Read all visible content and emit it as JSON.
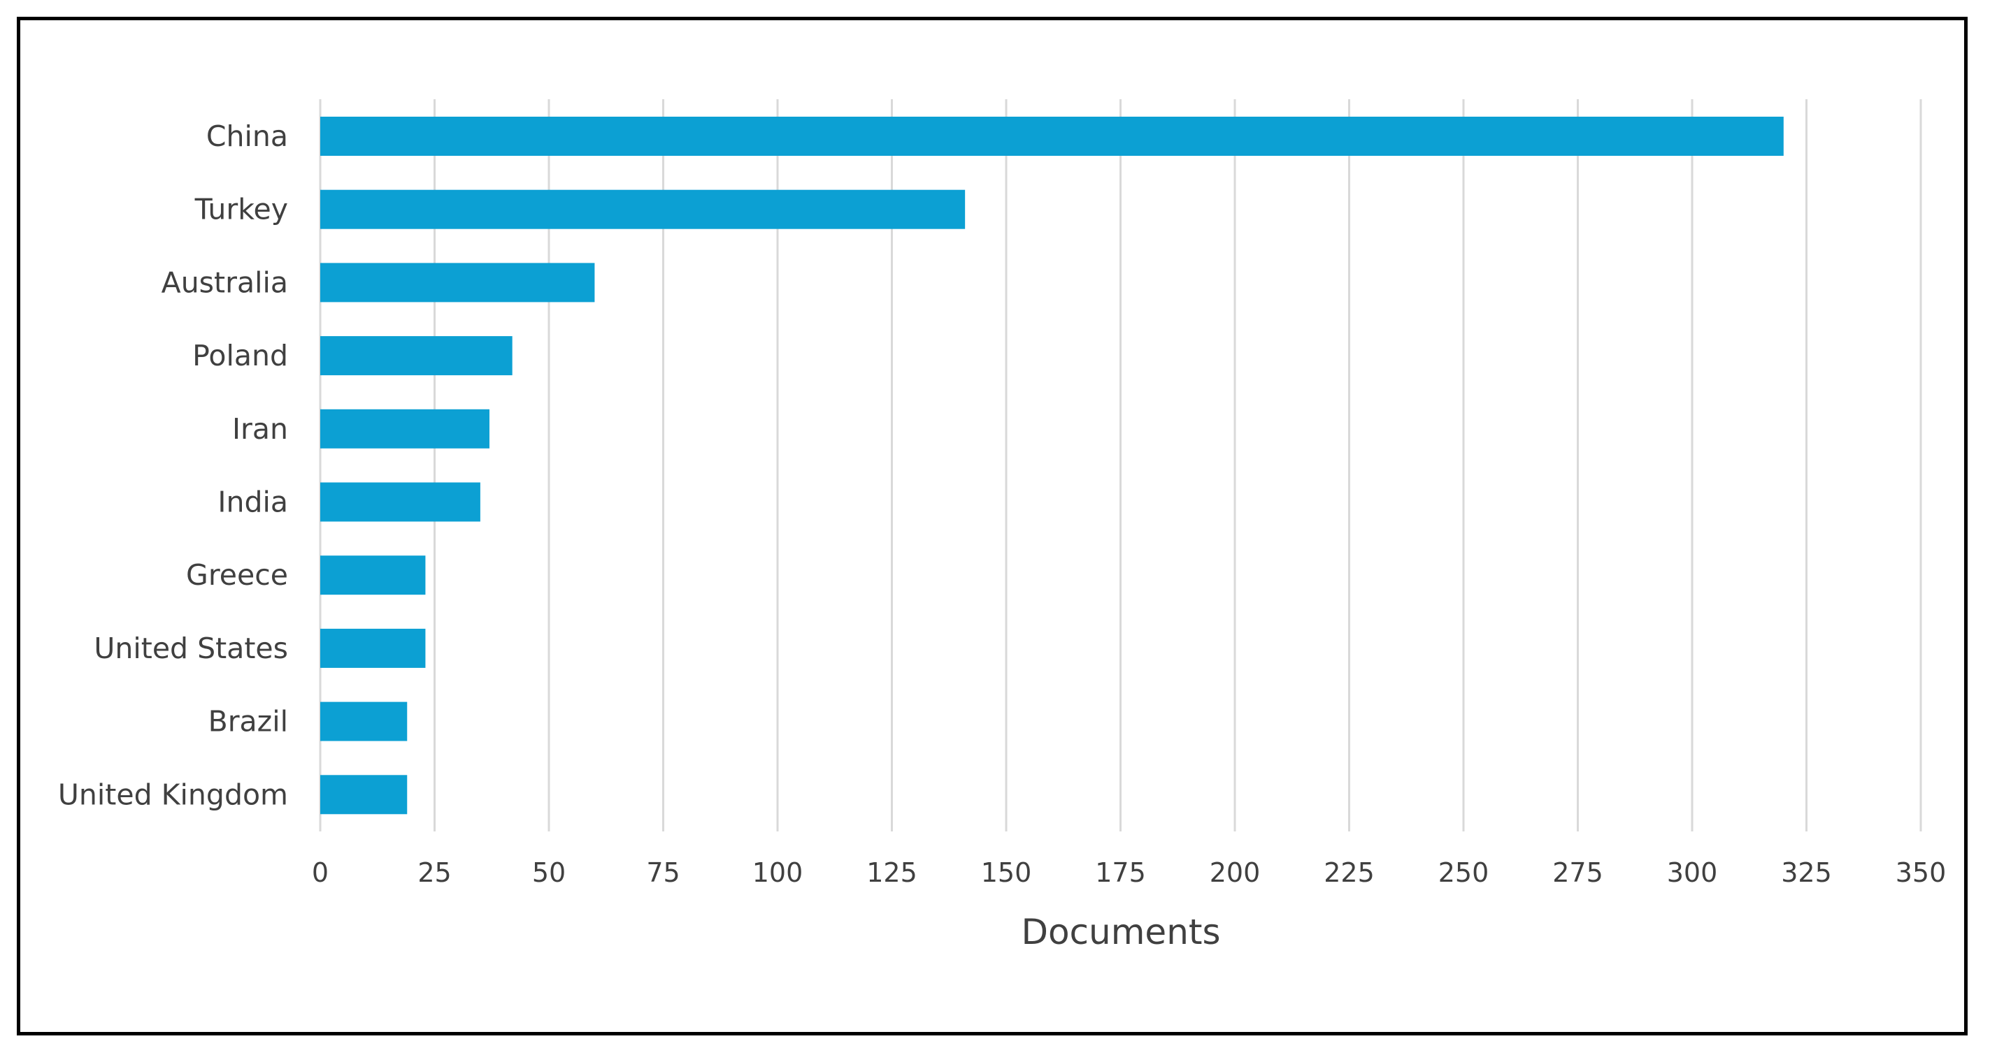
{
  "chart_data": {
    "type": "bar",
    "orientation": "horizontal",
    "categories": [
      "China",
      "Turkey",
      "Australia",
      "Poland",
      "Iran",
      "India",
      "Greece",
      "United States",
      "Brazil",
      "United Kingdom"
    ],
    "values": [
      320,
      141,
      60,
      42,
      37,
      35,
      23,
      23,
      19,
      19
    ],
    "xlabel": "Documents",
    "xlim": [
      0,
      350
    ],
    "xticks": [
      "0",
      "25",
      "50",
      "75",
      "100",
      "125",
      "150",
      "175",
      "200",
      "225",
      "250",
      "275",
      "300",
      "325",
      "350"
    ],
    "grid": "vertical",
    "bar_color": "#0ca0d3",
    "gridline_color": "#d9d9d9",
    "text_color": "#404040"
  }
}
